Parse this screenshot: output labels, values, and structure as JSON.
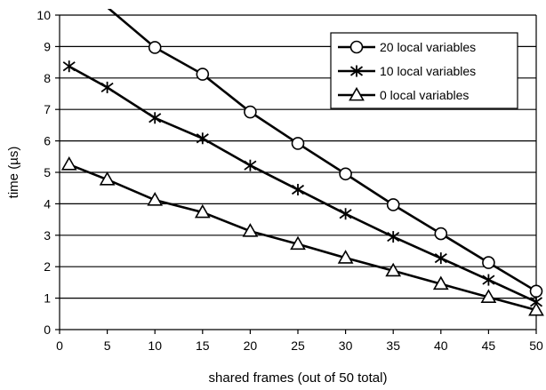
{
  "chart_data": {
    "type": "line",
    "title": "",
    "xlabel": "shared frames (out of 50 total)",
    "ylabel": "time (µs)",
    "xlim": [
      0,
      50
    ],
    "ylim": [
      0,
      10
    ],
    "x_ticks": [
      0,
      5,
      10,
      15,
      20,
      25,
      30,
      35,
      40,
      45,
      50
    ],
    "y_ticks": [
      0,
      1,
      2,
      3,
      4,
      5,
      6,
      7,
      8,
      9,
      10
    ],
    "grid": "horizontal",
    "legend_position": "top-right",
    "series": [
      {
        "name": "20 local variables",
        "marker": "circle",
        "color": "#000000",
        "points": [
          [
            5,
            10.25
          ],
          [
            10,
            8.97
          ],
          [
            15,
            8.12
          ],
          [
            20,
            6.92
          ],
          [
            25,
            5.92
          ],
          [
            30,
            4.95
          ],
          [
            35,
            3.97
          ],
          [
            40,
            3.05
          ],
          [
            45,
            2.13
          ],
          [
            50,
            1.22
          ]
        ]
      },
      {
        "name": "10 local variables",
        "marker": "star",
        "color": "#000000",
        "points": [
          [
            1,
            8.37
          ],
          [
            5,
            7.7
          ],
          [
            10,
            6.73
          ],
          [
            15,
            6.08
          ],
          [
            20,
            5.22
          ],
          [
            25,
            4.45
          ],
          [
            30,
            3.68
          ],
          [
            35,
            2.95
          ],
          [
            40,
            2.27
          ],
          [
            45,
            1.58
          ],
          [
            50,
            0.88
          ]
        ]
      },
      {
        "name": "0 local variables",
        "marker": "triangle",
        "color": "#000000",
        "points": [
          [
            1,
            5.25
          ],
          [
            5,
            4.77
          ],
          [
            10,
            4.12
          ],
          [
            15,
            3.73
          ],
          [
            20,
            3.13
          ],
          [
            25,
            2.72
          ],
          [
            30,
            2.28
          ],
          [
            35,
            1.87
          ],
          [
            40,
            1.45
          ],
          [
            45,
            1.03
          ],
          [
            50,
            0.62
          ]
        ]
      }
    ]
  }
}
